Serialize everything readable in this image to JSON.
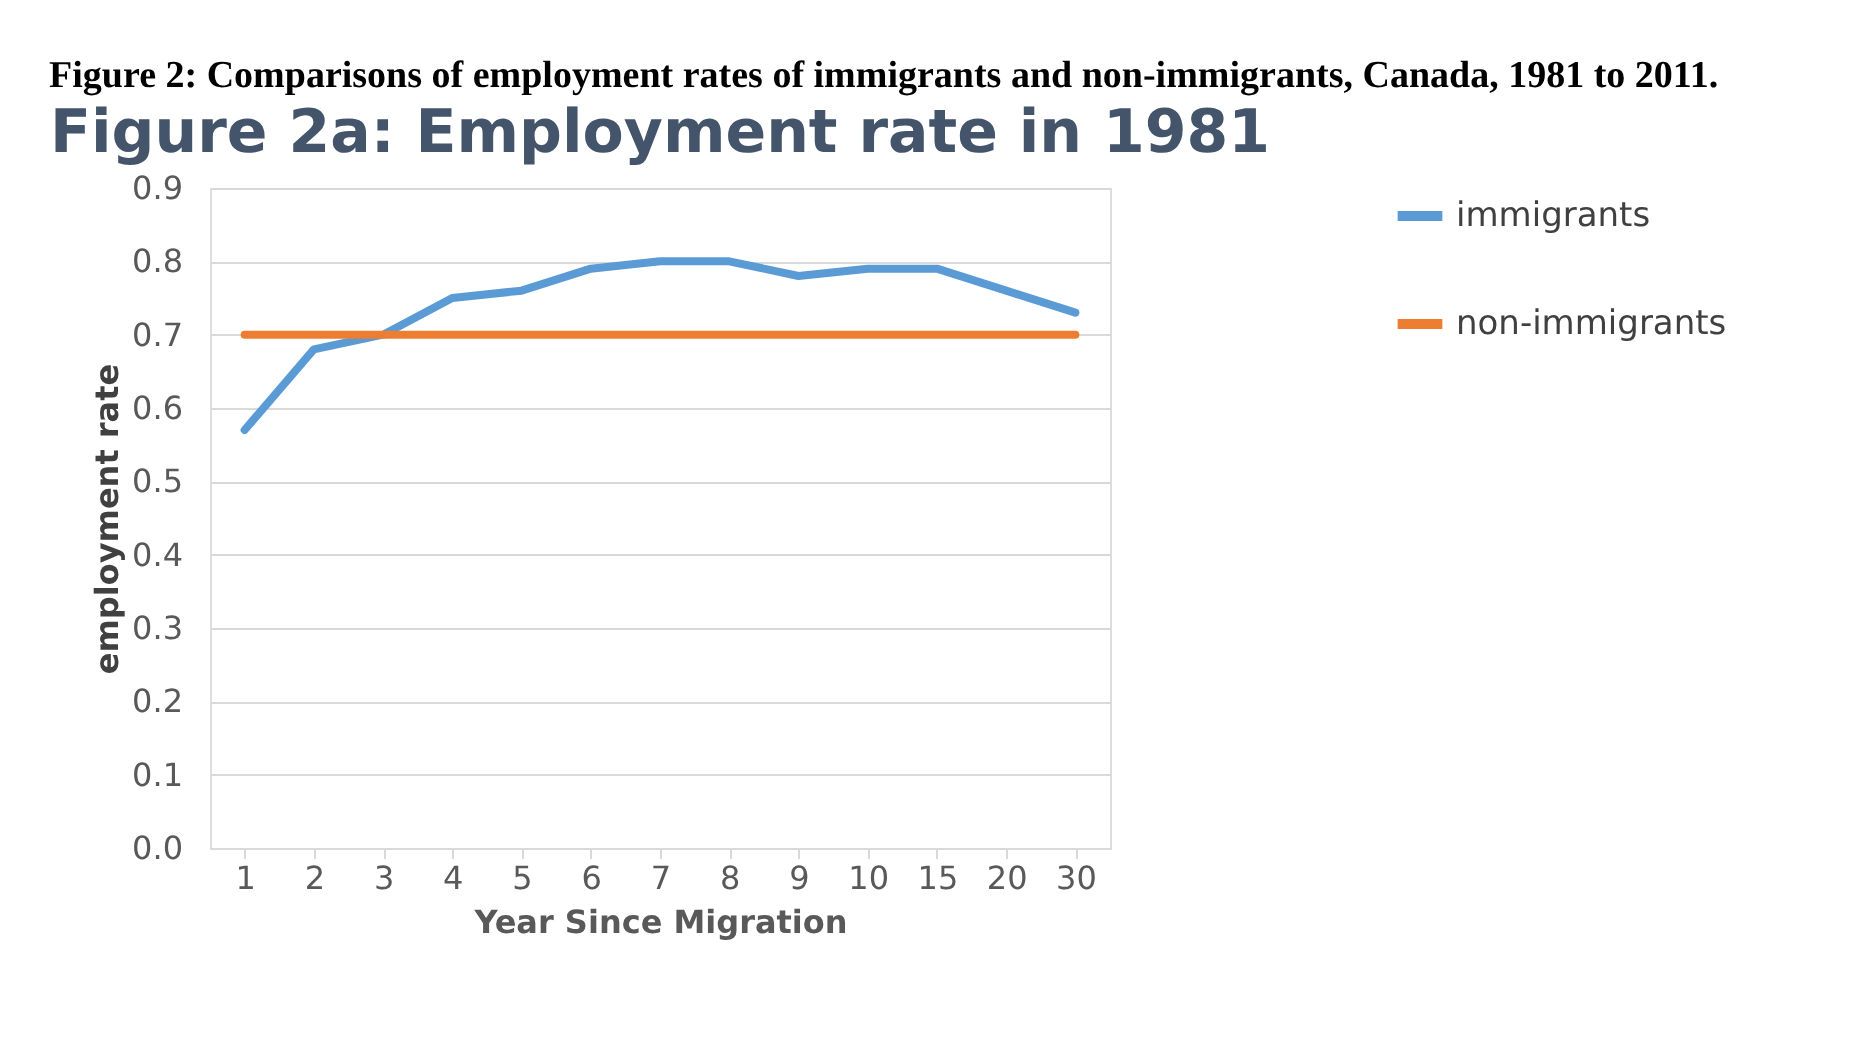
{
  "chart_data": {
    "type": "line",
    "title": "Figure 2: Comparisons of employment rates of immigrants and non-immigrants, Canada, 1981 to 2011.",
    "subtitle": "Figure 2a: Employment rate in 1981",
    "xlabel": "Year Since Migration",
    "ylabel": "employment rate",
    "categories": [
      "1",
      "2",
      "3",
      "4",
      "5",
      "6",
      "7",
      "8",
      "9",
      "10",
      "15",
      "20",
      "30"
    ],
    "series": [
      {
        "name": "immigrants",
        "color": "#5b9bd5",
        "values": [
          0.57,
          0.68,
          0.7,
          0.75,
          0.76,
          0.79,
          0.8,
          0.8,
          0.78,
          0.79,
          0.79,
          0.76,
          0.73
        ]
      },
      {
        "name": "non-immigrants",
        "color": "#ed7d31",
        "values": [
          0.7,
          0.7,
          0.7,
          0.7,
          0.7,
          0.7,
          0.7,
          0.7,
          0.7,
          0.7,
          0.7,
          0.7,
          0.7
        ]
      }
    ],
    "ylim": [
      0,
      0.9
    ],
    "yticks": [
      {
        "value": 0,
        "label": "0.0"
      },
      0.1,
      0.2,
      0.3,
      0.4,
      0.5,
      0.6,
      0.7,
      0.8,
      0.9
    ],
    "grid": "y",
    "legend": "right",
    "marker": "none",
    "line_style": "solid"
  }
}
